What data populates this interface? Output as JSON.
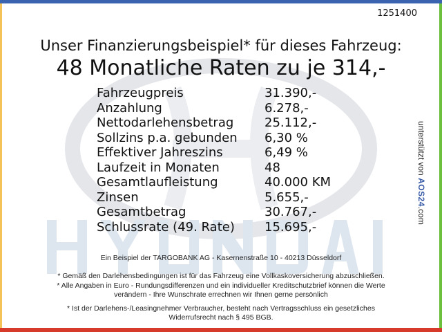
{
  "reference_number": "1251400",
  "headline": "Unser Finanzierungsbeispiel* für dieses Fahrzeug:",
  "subheadline": "48 Monatliche Raten zu je 314,-",
  "rows": [
    {
      "label": "Fahrzeugpreis",
      "value": "31.390,-"
    },
    {
      "label": "Anzahlung",
      "value": "6.278,-"
    },
    {
      "label": "Nettodarlehensbetrag",
      "value": "25.112,-"
    },
    {
      "label": "Sollzins p.a. gebunden",
      "value": "6,30 %"
    },
    {
      "label": "Effektiver Jahreszins",
      "value": "6,49 %"
    },
    {
      "label": "Laufzeit in Monaten",
      "value": "48"
    },
    {
      "label": "Gesamtlaufleistung",
      "value": "40.000 KM"
    },
    {
      "label": "Zinsen",
      "value": "5.655,-"
    },
    {
      "label": "Gesamtbetrag",
      "value": "30.767,-"
    },
    {
      "label": "Schlussrate (49. Rate)",
      "value": "15.695,-"
    }
  ],
  "side_credit": {
    "prefix": "unterstützt von",
    "brand": "AOS24",
    "suffix": ".com"
  },
  "watermark_brand": "HYUNDAI",
  "footer": {
    "bank": "Ein Beispiel der TARGOBANK AG - Kasernenstraße 10 - 40213 Düsseldorf",
    "note1": "* Gemäß den Darlehensbedingungen ist für das Fahrzeug eine Vollkaskoversicherung abzuschließen.",
    "note2a": "* Alle Angaben in Euro - Rundungsdifferenzen und ein individueller Kreditschutzbrief können die Werte",
    "note2b": "verändern - Ihre Wunschrate errechnen wir Ihnen gerne persönlich",
    "note3a": "* Ist der Darlehens-/Leasingnehmer Verbraucher, besteht nach Vertragsschluss ein gesetzliches",
    "note3b": "Widerrufsrecht nach § 495 BGB."
  },
  "colors": {
    "top_border": "#3b64b0",
    "left_border": "#f5c25a",
    "right_border": "#6cbf3c",
    "bottom_border": "#d63a2a"
  }
}
